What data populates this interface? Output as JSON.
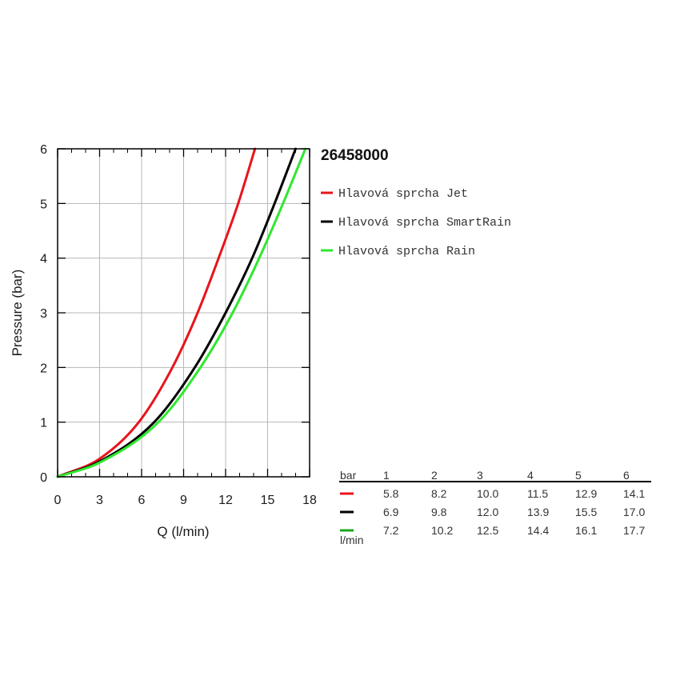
{
  "chart_data": {
    "type": "line",
    "title": "26458000",
    "xlabel": "Q (l/min)",
    "ylabel": "Pressure (bar)",
    "xlim": [
      0,
      18
    ],
    "ylim": [
      0,
      6
    ],
    "x_ticks": [
      0,
      3,
      6,
      9,
      12,
      15,
      18
    ],
    "y_ticks": [
      0,
      1,
      2,
      3,
      4,
      5,
      6
    ],
    "grid": true,
    "legend_position": "right of plot",
    "series": [
      {
        "name": "Hlavová sprcha Jet",
        "color": "#e8141c",
        "points": [
          [
            0,
            0
          ],
          [
            3,
            0.33
          ],
          [
            5.8,
            1
          ],
          [
            8.2,
            2
          ],
          [
            10,
            3
          ],
          [
            11.5,
            4
          ],
          [
            12.9,
            5
          ],
          [
            14.1,
            6
          ]
        ]
      },
      {
        "name": "Hlavová sprcha SmartRain",
        "color": "#000000",
        "points": [
          [
            0,
            0
          ],
          [
            3,
            0.28
          ],
          [
            6.9,
            1
          ],
          [
            9.8,
            2
          ],
          [
            12,
            3
          ],
          [
            13.9,
            4
          ],
          [
            15.5,
            5
          ],
          [
            17,
            6
          ]
        ]
      },
      {
        "name": "Hlavová sprcha Rain",
        "color": "#2ee82e",
        "points": [
          [
            0,
            0
          ],
          [
            3,
            0.26
          ],
          [
            7.2,
            1
          ],
          [
            10.2,
            2
          ],
          [
            12.5,
            3
          ],
          [
            14.4,
            4
          ],
          [
            16.1,
            5
          ],
          [
            17.7,
            6
          ]
        ]
      }
    ],
    "table": {
      "header_label": "bar",
      "unit_label": "l/min",
      "pressures": [
        "1",
        "2",
        "3",
        "4",
        "5",
        "6"
      ],
      "rows": [
        {
          "color": "#e8141c",
          "values": [
            "5.8",
            "8.2",
            "10.0",
            "11.5",
            "12.9",
            "14.1"
          ]
        },
        {
          "color": "#000000",
          "values": [
            "6.9",
            "9.8",
            "12.0",
            "13.9",
            "15.5",
            "17.0"
          ]
        },
        {
          "color": "#1aa81a",
          "values": [
            "7.2",
            "10.2",
            "12.5",
            "14.4",
            "16.1",
            "17.7"
          ]
        }
      ]
    }
  }
}
